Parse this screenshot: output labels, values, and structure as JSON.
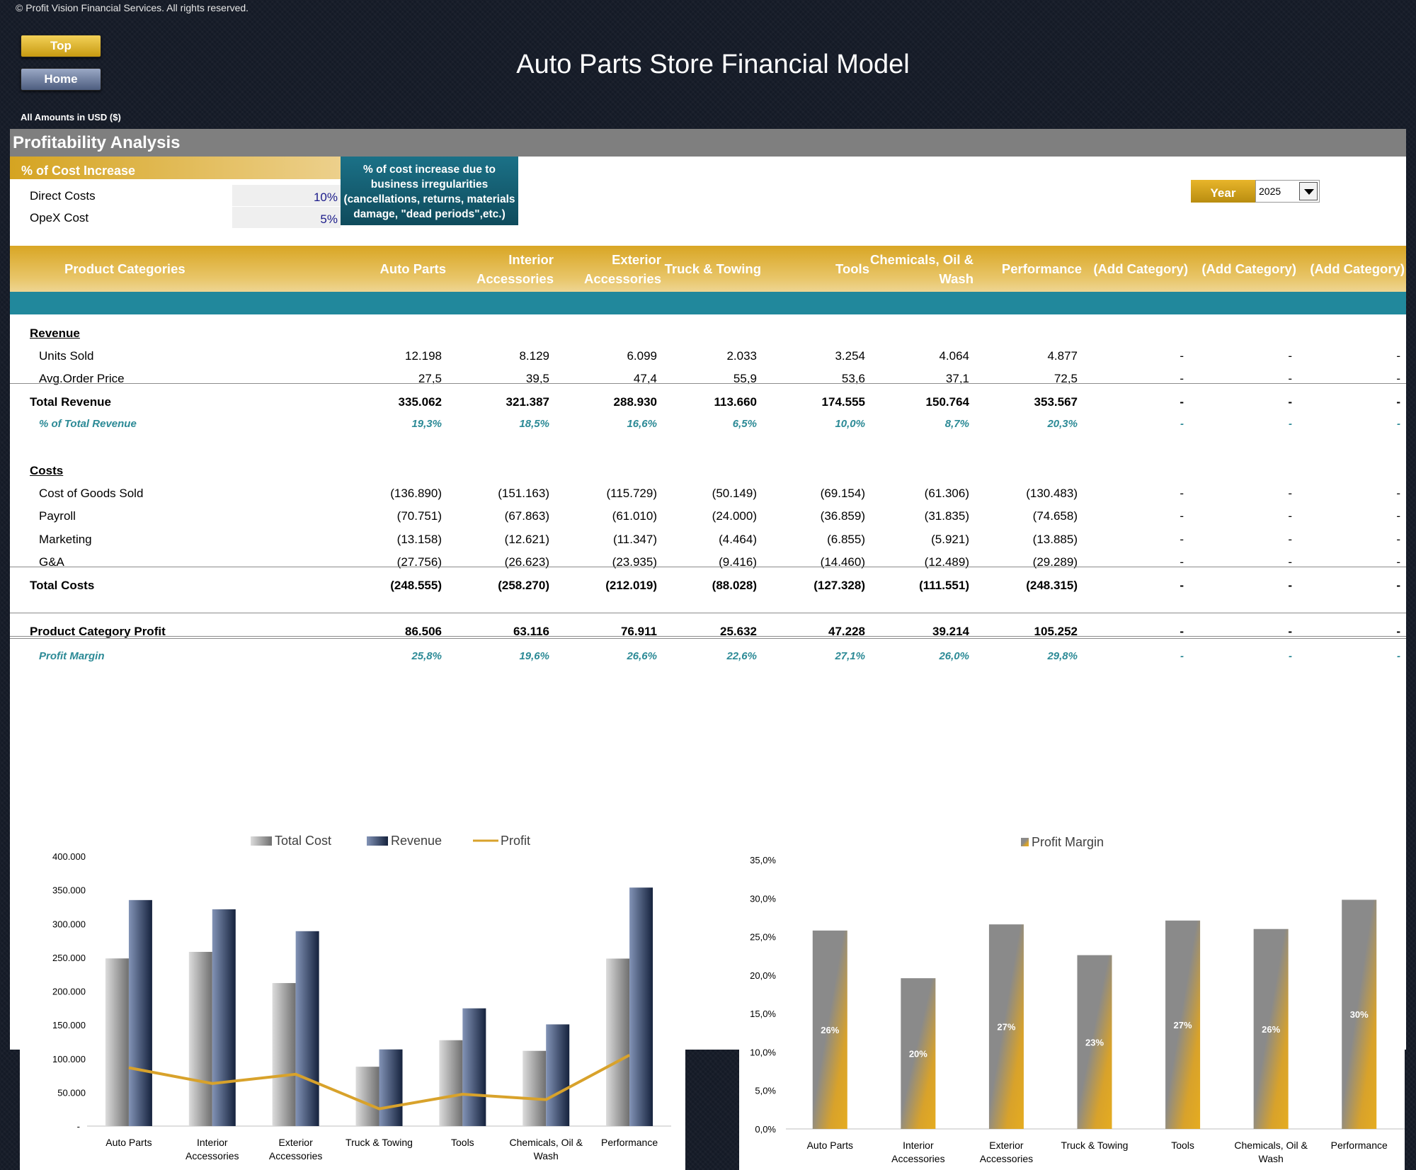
{
  "copyright": "© Profit Vision Financial Services. All rights reserved.",
  "nav": {
    "top_label": "Top",
    "home_label": "Home"
  },
  "title": "Auto Parts Store Financial Model",
  "amounts_note": "All Amounts in  USD ($)",
  "section_title": "Profitability Analysis",
  "cost_increase": {
    "heading": "% of Cost Increase",
    "rows": [
      {
        "label": "Direct Costs",
        "value": "10%"
      },
      {
        "label": "OpeX Cost",
        "value": "5%"
      }
    ],
    "note_lines": [
      "% of cost increase due to",
      "business irregularities",
      "(cancellations, returns, materials",
      "damage, \"dead periods\",etc.)"
    ]
  },
  "year": {
    "label": "Year",
    "value": "2025"
  },
  "table": {
    "header_label": "Product Categories",
    "categories": [
      "Auto Parts",
      "Interior Accessories",
      "Exterior Accessories",
      "Truck & Towing",
      "Tools",
      "Chemicals, Oil & Wash",
      "Performance",
      "(Add Category)",
      "(Add Category)",
      "(Add Category)"
    ],
    "revenue_heading": "Revenue",
    "costs_heading": "Costs",
    "rows": {
      "units_sold": {
        "label": "Units Sold",
        "values": [
          "12.198",
          "8.129",
          "6.099",
          "2.033",
          "3.254",
          "4.064",
          "4.877",
          "-",
          "-",
          "-"
        ]
      },
      "avg_order_price": {
        "label": "Avg.Order Price",
        "values": [
          "27,5",
          "39,5",
          "47,4",
          "55,9",
          "53,6",
          "37,1",
          "72,5",
          "-",
          "-",
          "-"
        ]
      },
      "total_revenue": {
        "label": "Total Revenue",
        "values": [
          "335.062",
          "321.387",
          "288.930",
          "113.660",
          "174.555",
          "150.764",
          "353.567",
          "-",
          "-",
          "-"
        ]
      },
      "pct_total_revenue": {
        "label": "% of Total Revenue",
        "values": [
          "19,3%",
          "18,5%",
          "16,6%",
          "6,5%",
          "10,0%",
          "8,7%",
          "20,3%",
          "-",
          "-",
          "-"
        ]
      },
      "cogs": {
        "label": "Cost of Goods Sold",
        "values": [
          "(136.890)",
          "(151.163)",
          "(115.729)",
          "(50.149)",
          "(69.154)",
          "(61.306)",
          "(130.483)",
          "-",
          "-",
          "-"
        ]
      },
      "payroll": {
        "label": "Payroll",
        "values": [
          "(70.751)",
          "(67.863)",
          "(61.010)",
          "(24.000)",
          "(36.859)",
          "(31.835)",
          "(74.658)",
          "-",
          "-",
          "-"
        ]
      },
      "marketing": {
        "label": "Marketing",
        "values": [
          "(13.158)",
          "(12.621)",
          "(11.347)",
          "(4.464)",
          "(6.855)",
          "(5.921)",
          "(13.885)",
          "-",
          "-",
          "-"
        ]
      },
      "ga": {
        "label": "G&A",
        "values": [
          "(27.756)",
          "(26.623)",
          "(23.935)",
          "(9.416)",
          "(14.460)",
          "(12.489)",
          "(29.289)",
          "-",
          "-",
          "-"
        ]
      },
      "total_costs": {
        "label": "Total Costs",
        "values": [
          "(248.555)",
          "(258.270)",
          "(212.019)",
          "(88.028)",
          "(127.328)",
          "(111.551)",
          "(248.315)",
          "-",
          "-",
          "-"
        ]
      },
      "profit": {
        "label": "Product Category Profit",
        "values": [
          "86.506",
          "63.116",
          "76.911",
          "25.632",
          "47.228",
          "39.214",
          "105.252",
          "-",
          "-",
          "-"
        ]
      },
      "profit_margin": {
        "label": "Profit Margin",
        "values": [
          "25,8%",
          "19,6%",
          "26,6%",
          "22,6%",
          "27,1%",
          "26,0%",
          "29,8%",
          "-",
          "-",
          "-"
        ]
      }
    }
  },
  "colors": {
    "gold": "#d8a22b",
    "teal": "#21889c",
    "navy": "#1f2e4d",
    "grey": "#8a8a8a"
  },
  "chart_data": [
    {
      "type": "bar",
      "categories": [
        "Auto Parts",
        "Interior Accessories",
        "Exterior Accessories",
        "Truck & Towing",
        "Tools",
        "Chemicals, Oil & Wash",
        "Performance"
      ],
      "series": [
        {
          "name": "Total Cost",
          "type": "bar",
          "values": [
            248555,
            258270,
            212019,
            88028,
            127328,
            111551,
            248315
          ]
        },
        {
          "name": "Revenue",
          "type": "bar",
          "values": [
            335062,
            321387,
            288930,
            113660,
            174555,
            150764,
            353567
          ]
        },
        {
          "name": "Profit",
          "type": "line",
          "values": [
            86506,
            63116,
            76911,
            25632,
            47228,
            39214,
            105252
          ]
        }
      ],
      "ylim": [
        0,
        400000
      ],
      "yticks": [
        "-",
        "50.000",
        "100.000",
        "150.000",
        "200.000",
        "250.000",
        "300.000",
        "350.000",
        "400.000"
      ],
      "legend": "top-center",
      "grid": false
    },
    {
      "type": "bar",
      "categories": [
        "Auto Parts",
        "Interior Accessories",
        "Exterior Accessories",
        "Truck & Towing",
        "Tools",
        "Chemicals, Oil & Wash",
        "Performance"
      ],
      "series": [
        {
          "name": "Profit Margin",
          "values": [
            25.8,
            19.6,
            26.6,
            22.6,
            27.1,
            26.0,
            29.8
          ]
        }
      ],
      "data_labels": [
        "26%",
        "20%",
        "27%",
        "23%",
        "27%",
        "26%",
        "30%"
      ],
      "ylim": [
        0,
        35
      ],
      "yticks": [
        "0,0%",
        "5,0%",
        "10,0%",
        "15,0%",
        "20,0%",
        "25,0%",
        "30,0%",
        "35,0%"
      ],
      "legend": "top-center",
      "grid": false
    }
  ]
}
